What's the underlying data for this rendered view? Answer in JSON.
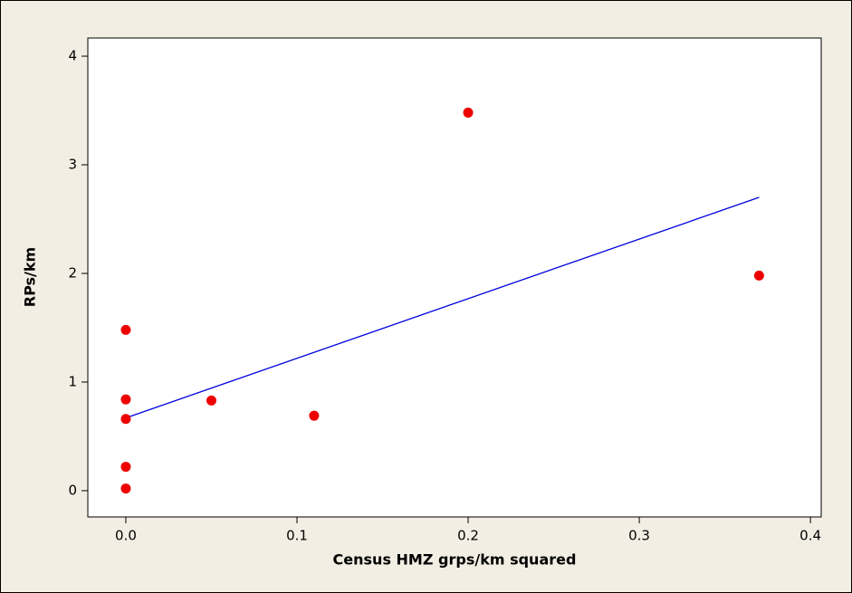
{
  "chart_data": {
    "type": "scatter",
    "x_label": "Census HMZ grps/km squared",
    "y_label": "RPs/km",
    "x": [
      0,
      0,
      0,
      0,
      0,
      0.05,
      0.11,
      0.2,
      0.37
    ],
    "y": [
      1.48,
      0.84,
      0.66,
      0.22,
      0.02,
      0.83,
      0.69,
      3.48,
      1.98
    ],
    "color": "#ee0000",
    "fit": {
      "x": [
        0,
        0.37
      ],
      "y": [
        0.67,
        2.7
      ],
      "color": "#0000dd"
    },
    "xlim": [
      -0.0222,
      0.4063
    ],
    "ylim": [
      -0.242,
      4.167
    ],
    "xticks": [
      {
        "value": 0,
        "label": "0.0"
      },
      0.1,
      0.2,
      0.3,
      0.4
    ],
    "yticks": [
      0,
      1,
      2,
      3,
      4
    ]
  }
}
